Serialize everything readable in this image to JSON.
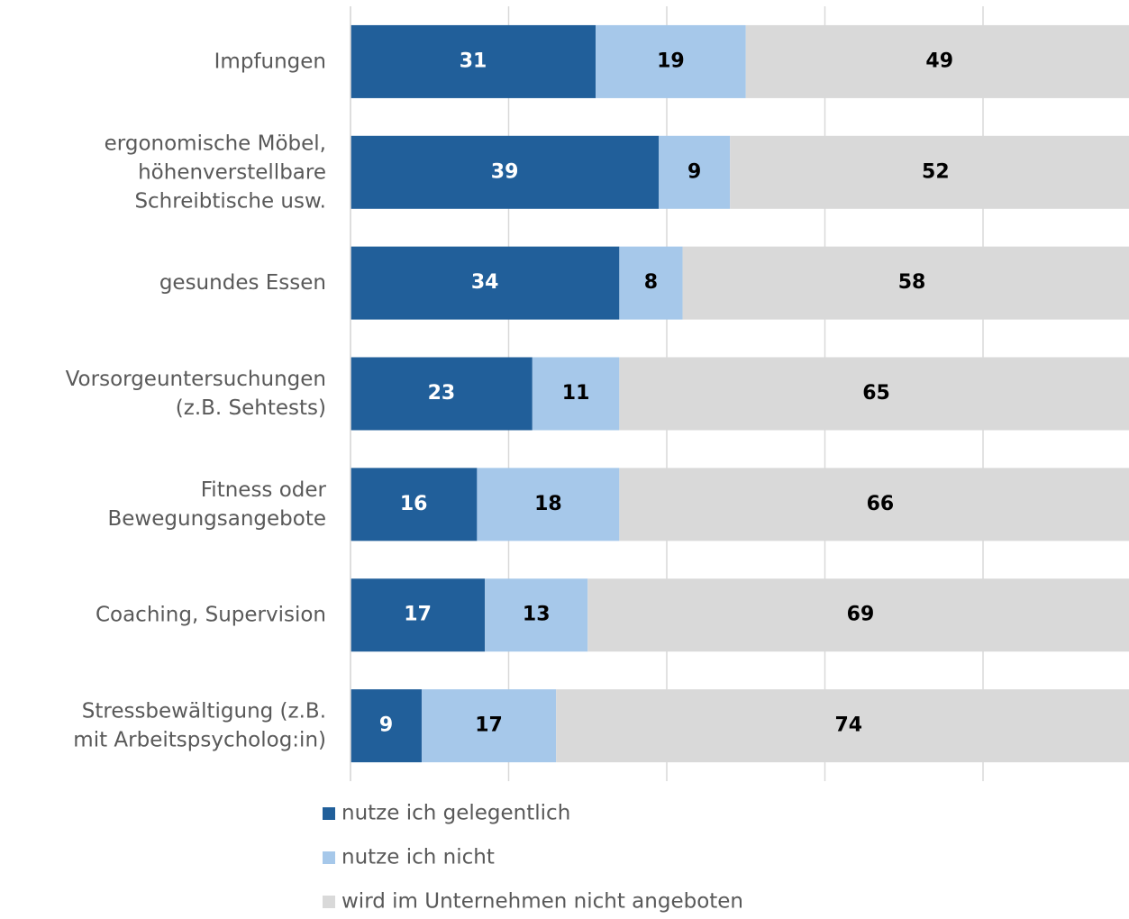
{
  "chart_data": {
    "type": "stacked-bar-horizontal",
    "categories": [
      "Impfungen",
      "ergonomische Möbel,\nhöhenverstellbare\nSchreibtische usw.",
      "gesundes Essen",
      "Vorsorgeuntersuchungen\n(z.B. Sehtests)",
      "Fitness oder\nBewegungsangebote",
      "Coaching, Supervision",
      "Stressbewältigung (z.B.\nmit Arbeitspsycholog:in)"
    ],
    "series": [
      {
        "name": "nutze ich gelegentlich",
        "color": "#215f9a",
        "label_color": "#ffffff",
        "values": [
          31,
          39,
          34,
          23,
          16,
          17,
          9
        ]
      },
      {
        "name": "nutze ich nicht",
        "color": "#a6c8ea",
        "label_color": "#000000",
        "values": [
          19,
          9,
          8,
          11,
          18,
          13,
          17
        ]
      },
      {
        "name": "wird im Unternehmen nicht angeboten",
        "color": "#d9d9d9",
        "label_color": "#000000",
        "values": [
          49,
          52,
          58,
          65,
          66,
          69,
          74
        ]
      }
    ],
    "xlim": [
      0,
      100
    ],
    "xticks": [
      0,
      20,
      40,
      60,
      80,
      100
    ],
    "grid": true
  }
}
